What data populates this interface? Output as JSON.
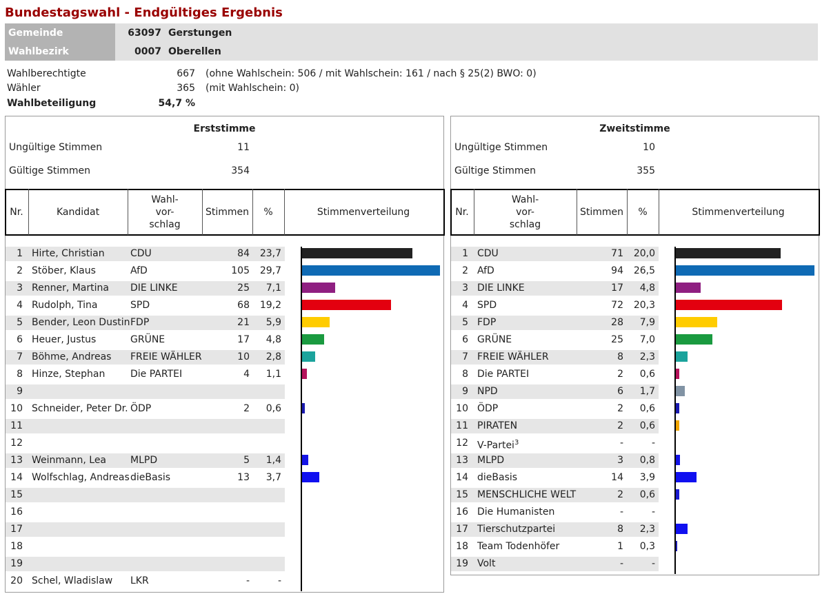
{
  "header": {
    "title": "Bundestagswahl - Endgültiges Ergebnis",
    "gemeinde": {
      "label": "Gemeinde",
      "code": "63097",
      "name": "Gerstungen"
    },
    "wahlbezirk": {
      "label": "Wahlbezirk",
      "code": "0007",
      "name": "Oberellen"
    }
  },
  "summary": [
    {
      "label": "Wahlberechtigte",
      "value": "667",
      "note": "(ohne Wahlschein: 506 / mit Wahlschein: 161 / nach § 25(2) BWO: 0)"
    },
    {
      "label": "Wähler",
      "value": "365",
      "note": "(mit Wahlschein: 0)"
    },
    {
      "label": "Wahlbeteiligung",
      "value": "54,7 %"
    }
  ],
  "erststimme": {
    "title": "Erststimme",
    "invalid": {
      "label": "Ungültige Stimmen",
      "value": 11
    },
    "valid": {
      "label": "Gültige Stimmen",
      "value": 354
    },
    "columns": [
      "Nr.",
      "Kandidat",
      [
        "Wahl-",
        "vor-",
        "schlag"
      ],
      "Stimmen",
      "%",
      "Stimmenverteilung"
    ],
    "rows": [
      {
        "nr": 1,
        "candidate": "Hirte, Christian",
        "party": "CDU",
        "votes": 84,
        "percent": {
          "value": 23.7,
          "label": "23,7"
        },
        "color": "#222222"
      },
      {
        "nr": 2,
        "candidate": "Stöber, Klaus",
        "party": "AfD",
        "votes": 105,
        "percent": {
          "value": 29.7,
          "label": "29,7"
        },
        "color": "#0f6ab4"
      },
      {
        "nr": 3,
        "candidate": "Renner, Martina",
        "party": "DIE LINKE",
        "votes": 25,
        "percent": {
          "value": 7.1,
          "label": "7,1"
        },
        "color": "#8f1f81"
      },
      {
        "nr": 4,
        "candidate": "Rudolph, Tina",
        "party": "SPD",
        "votes": 68,
        "percent": {
          "value": 19.2,
          "label": "19,2"
        },
        "color": "#e3000f"
      },
      {
        "nr": 5,
        "candidate": "Bender, Leon Dustin",
        "party": "FDP",
        "votes": 21,
        "percent": {
          "value": 5.9,
          "label": "5,9"
        },
        "color": "#ffcc00"
      },
      {
        "nr": 6,
        "candidate": "Heuer, Justus",
        "party": "GRÜNE",
        "votes": 17,
        "percent": {
          "value": 4.8,
          "label": "4,8"
        },
        "color": "#1a9a40"
      },
      {
        "nr": 7,
        "candidate": "Böhme, Andreas",
        "party": "FREIE WÄHLER",
        "votes": 10,
        "percent": {
          "value": 2.8,
          "label": "2,8"
        },
        "color": "#1ba39c"
      },
      {
        "nr": 8,
        "candidate": "Hinze, Stephan",
        "party": "Die PARTEI",
        "votes": 4,
        "percent": {
          "value": 1.1,
          "label": "1,1"
        },
        "color": "#b5135b"
      },
      {
        "nr": 9
      },
      {
        "nr": 10,
        "candidate": "Schneider, Peter Dr.",
        "party": "ÖDP",
        "votes": 2,
        "percent": {
          "value": 0.6,
          "label": "0,6"
        },
        "color": "#1a1ab0"
      },
      {
        "nr": 11
      },
      {
        "nr": 12
      },
      {
        "nr": 13,
        "candidate": "Weinmann, Lea",
        "party": "MLPD",
        "votes": 5,
        "percent": {
          "value": 1.4,
          "label": "1,4"
        },
        "color": "#1414e6"
      },
      {
        "nr": 14,
        "candidate": "Wolfschlag, Andreas",
        "party": "dieBasis",
        "votes": 13,
        "percent": {
          "value": 3.7,
          "label": "3,7"
        },
        "color": "#1010f0"
      },
      {
        "nr": 15
      },
      {
        "nr": 16
      },
      {
        "nr": 17
      },
      {
        "nr": 18
      },
      {
        "nr": 19
      },
      {
        "nr": 20,
        "candidate": "Schel, Wladislaw",
        "party": "LKR",
        "votes": "-",
        "percent": "-"
      }
    ]
  },
  "zweitstimme": {
    "title": "Zweitstimme",
    "invalid": {
      "label": "Ungültige Stimmen",
      "value": 10
    },
    "valid": {
      "label": "Gültige Stimmen",
      "value": 355
    },
    "columns": [
      "Nr.",
      [
        "Wahl-",
        "vor-",
        "schlag"
      ],
      "Stimmen",
      "%",
      "Stimmenverteilung"
    ],
    "rows": [
      {
        "nr": 1,
        "party": "CDU",
        "votes": 71,
        "percent": {
          "value": 20.0,
          "label": "20,0"
        },
        "color": "#222222"
      },
      {
        "nr": 2,
        "party": "AfD",
        "votes": 94,
        "percent": {
          "value": 26.5,
          "label": "26,5"
        },
        "color": "#0f6ab4"
      },
      {
        "nr": 3,
        "party": "DIE LINKE",
        "votes": 17,
        "percent": {
          "value": 4.8,
          "label": "4,8"
        },
        "color": "#8f1f81"
      },
      {
        "nr": 4,
        "party": "SPD",
        "votes": 72,
        "percent": {
          "value": 20.3,
          "label": "20,3"
        },
        "color": "#e3000f"
      },
      {
        "nr": 5,
        "party": "FDP",
        "votes": 28,
        "percent": {
          "value": 7.9,
          "label": "7,9"
        },
        "color": "#ffcc00"
      },
      {
        "nr": 6,
        "party": "GRÜNE",
        "votes": 25,
        "percent": {
          "value": 7.0,
          "label": "7,0"
        },
        "color": "#1a9a40"
      },
      {
        "nr": 7,
        "party": "FREIE WÄHLER",
        "votes": 8,
        "percent": {
          "value": 2.3,
          "label": "2,3"
        },
        "color": "#1ba39c"
      },
      {
        "nr": 8,
        "party": "Die PARTEI",
        "votes": 2,
        "percent": {
          "value": 0.6,
          "label": "0,6"
        },
        "color": "#b5135b"
      },
      {
        "nr": 9,
        "party": "NPD",
        "votes": 6,
        "percent": {
          "value": 1.7,
          "label": "1,7"
        },
        "color": "#8193a4"
      },
      {
        "nr": 10,
        "party": "ÖDP",
        "votes": 2,
        "percent": {
          "value": 0.6,
          "label": "0,6"
        },
        "color": "#1a1ab0"
      },
      {
        "nr": 11,
        "party": "PIRATEN",
        "votes": 2,
        "percent": {
          "value": 0.6,
          "label": "0,6"
        },
        "color": "#f0a500"
      },
      {
        "nr": 12,
        "party": "V-Partei",
        "footnote": "3",
        "votes": "-",
        "percent": "-"
      },
      {
        "nr": 13,
        "party": "MLPD",
        "votes": 3,
        "percent": {
          "value": 0.8,
          "label": "0,8"
        },
        "color": "#1414e6"
      },
      {
        "nr": 14,
        "party": "dieBasis",
        "votes": 14,
        "percent": {
          "value": 3.9,
          "label": "3,9"
        },
        "color": "#1010f0"
      },
      {
        "nr": 15,
        "party": "MENSCHLICHE WELT",
        "votes": 2,
        "percent": {
          "value": 0.6,
          "label": "0,6"
        },
        "color": "#1a1ad0"
      },
      {
        "nr": 16,
        "party": "Die Humanisten",
        "votes": "-",
        "percent": "-"
      },
      {
        "nr": 17,
        "party": "Tierschutzpartei",
        "votes": 8,
        "percent": {
          "value": 2.3,
          "label": "2,3"
        },
        "color": "#1010f0"
      },
      {
        "nr": 18,
        "party": "Team Todenhöfer",
        "votes": 1,
        "percent": {
          "value": 0.3,
          "label": "0,3"
        },
        "color": "#1a1ab0"
      },
      {
        "nr": 19,
        "party": "Volt",
        "votes": "-",
        "percent": "-"
      }
    ]
  }
}
